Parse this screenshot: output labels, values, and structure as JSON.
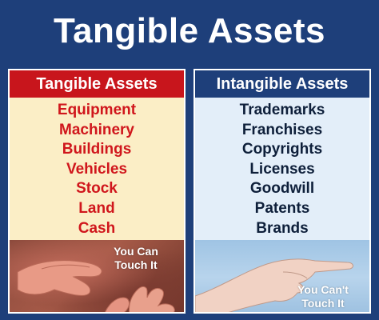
{
  "title": "Tangible Assets",
  "tangible": {
    "header": "Tangible Assets",
    "items": [
      "Equipment",
      "Machinery",
      "Buildings",
      "Vehicles",
      "Stock",
      "Land",
      "Cash"
    ],
    "caption_line1": "You Can",
    "caption_line2": "Touch It"
  },
  "intangible": {
    "header": "Intangible Assets",
    "items": [
      "Trademarks",
      "Franchises",
      "Copyrights",
      "Licenses",
      "Goodwill",
      "Patents",
      "Brands"
    ],
    "caption_line1": "You Can't",
    "caption_line2": "Touch It"
  },
  "colors": {
    "navy": "#1e3f7a",
    "red": "#c8151c",
    "tangible_bg": "#fbeec6",
    "intangible_bg": "#e3eef9"
  },
  "icons": {
    "left_photo": "hands-touching-surface-image",
    "right_photo": "hand-pointing-image"
  }
}
